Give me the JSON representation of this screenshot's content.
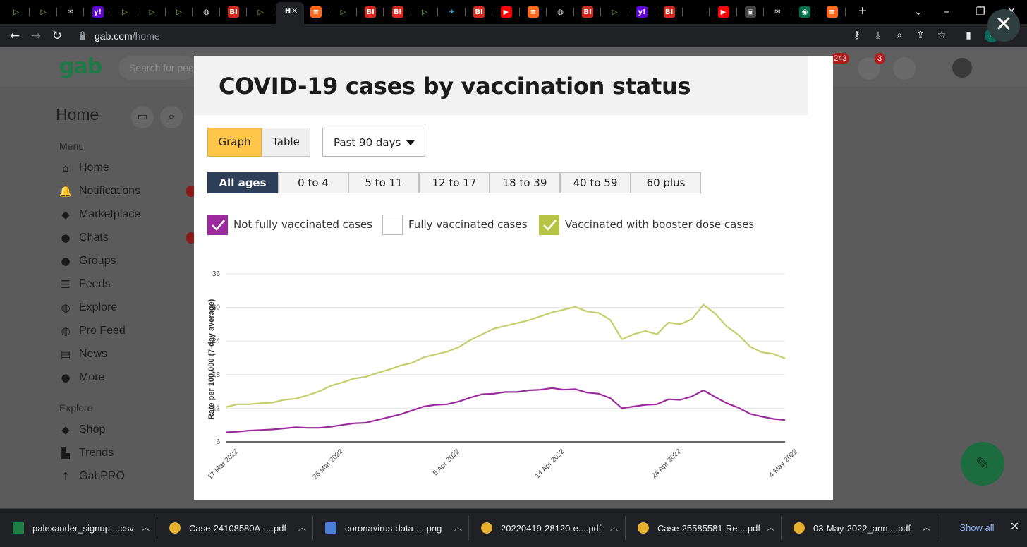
{
  "browser": {
    "tabs": [
      {
        "icon": "rumble-icon",
        "glyph": "▷",
        "bg": "#000000",
        "fg": "#85c742"
      },
      {
        "icon": "rumble-icon",
        "glyph": "▷",
        "bg": "#000000",
        "fg": "#85c742"
      },
      {
        "icon": "mail-icon",
        "glyph": "✉",
        "bg": "#000000",
        "fg": "#ffffff"
      },
      {
        "icon": "yahoo-icon",
        "glyph": "y!",
        "bg": "#5f01d1",
        "fg": "#ffffff"
      },
      {
        "icon": "rumble-icon",
        "glyph": "▷",
        "bg": "#000000",
        "fg": "#85c742"
      },
      {
        "icon": "rumble-icon",
        "glyph": "▷",
        "bg": "#000000",
        "fg": "#85c742"
      },
      {
        "icon": "rumble-icon",
        "glyph": "▷",
        "bg": "#000000",
        "fg": "#85c742"
      },
      {
        "icon": "globe-icon",
        "glyph": "◍",
        "bg": "#000000",
        "fg": "#ffffff"
      },
      {
        "icon": "bi-icon",
        "glyph": "BI",
        "bg": "#d52b1e",
        "fg": "#ffffff"
      },
      {
        "icon": "rumble-icon",
        "glyph": "▷",
        "bg": "#000000",
        "fg": "#85c742"
      },
      {
        "icon": "gab-active-icon",
        "glyph": "H",
        "bg": "#202124",
        "fg": "#ffffff",
        "active": true
      },
      {
        "icon": "substack-icon",
        "glyph": "≡",
        "bg": "#ff6719",
        "fg": "#ffffff"
      },
      {
        "icon": "rumble-icon",
        "glyph": "▷",
        "bg": "#000000",
        "fg": "#85c742"
      },
      {
        "icon": "bi-icon",
        "glyph": "BI",
        "bg": "#d52b1e",
        "fg": "#ffffff"
      },
      {
        "icon": "bi-icon",
        "glyph": "BI",
        "bg": "#d52b1e",
        "fg": "#ffffff"
      },
      {
        "icon": "rumble-icon",
        "glyph": "▷",
        "bg": "#000000",
        "fg": "#85c742"
      },
      {
        "icon": "bird-icon",
        "glyph": "✈",
        "bg": "#000000",
        "fg": "#3ab0e2"
      },
      {
        "icon": "bi-icon",
        "glyph": "BI",
        "bg": "#d52b1e",
        "fg": "#ffffff"
      },
      {
        "icon": "youtube-icon",
        "glyph": "▶",
        "bg": "#ff0000",
        "fg": "#ffffff"
      },
      {
        "icon": "substack-icon",
        "glyph": "≡",
        "bg": "#ff6719",
        "fg": "#ffffff"
      },
      {
        "icon": "globe-icon",
        "glyph": "◍",
        "bg": "#000000",
        "fg": "#ffffff"
      },
      {
        "icon": "bi-icon",
        "glyph": "BI",
        "bg": "#d52b1e",
        "fg": "#ffffff"
      },
      {
        "icon": "rumble-icon",
        "glyph": "▷",
        "bg": "#000000",
        "fg": "#85c742"
      },
      {
        "icon": "yahoo-icon",
        "glyph": "y!",
        "bg": "#5f01d1",
        "fg": "#ffffff"
      },
      {
        "icon": "bi-icon",
        "glyph": "BI",
        "bg": "#d52b1e",
        "fg": "#ffffff"
      },
      {
        "icon": "blank-icon",
        "glyph": "",
        "bg": "#000000",
        "fg": "#ffffff"
      },
      {
        "icon": "youtube-icon",
        "glyph": "▶",
        "bg": "#ff0000",
        "fg": "#ffffff"
      },
      {
        "icon": "photo-icon",
        "glyph": "▣",
        "bg": "#444444",
        "fg": "#dddddd"
      },
      {
        "icon": "mail-icon",
        "glyph": "✉",
        "bg": "#000000",
        "fg": "#ffffff"
      },
      {
        "icon": "starbucks-icon",
        "glyph": "◉",
        "bg": "#00704a",
        "fg": "#ffffff"
      },
      {
        "icon": "substack-icon",
        "glyph": "≡",
        "bg": "#ff6719",
        "fg": "#ffffff"
      }
    ],
    "url_host": "gab.com",
    "url_path": "/home",
    "profile_initial": "P"
  },
  "gab": {
    "logo": "gab",
    "search_placeholder": "Search for people",
    "notif_badge": "243",
    "chat_badge": "3",
    "home_title": "Home",
    "menu_label": "Menu",
    "menu_items": [
      {
        "label": "Home",
        "icon": "home-icon",
        "glyph": "⌂"
      },
      {
        "label": "Notifications",
        "icon": "bell-icon",
        "glyph": "🔔"
      },
      {
        "label": "Marketplace",
        "icon": "tag-icon",
        "glyph": "◆"
      },
      {
        "label": "Chats",
        "icon": "chat-icon",
        "glyph": "●"
      },
      {
        "label": "Groups",
        "icon": "groups-icon",
        "glyph": "●"
      },
      {
        "label": "Feeds",
        "icon": "feeds-icon",
        "glyph": "☰"
      },
      {
        "label": "Explore",
        "icon": "globe-icon",
        "glyph": "◍"
      },
      {
        "label": "Pro Feed",
        "icon": "globe-icon",
        "glyph": "◍"
      },
      {
        "label": "News",
        "icon": "news-icon",
        "glyph": "▤"
      },
      {
        "label": "More",
        "icon": "more-icon",
        "glyph": "●"
      }
    ],
    "explore_label": "Explore",
    "explore_items": [
      {
        "label": "Shop",
        "icon": "tag-icon",
        "glyph": "◆"
      },
      {
        "label": "Trends",
        "icon": "trends-icon",
        "glyph": "▙"
      },
      {
        "label": "GabPRO",
        "icon": "arrow-up-icon",
        "glyph": "↑"
      }
    ]
  },
  "modal": {
    "title": "COVID-19 cases by vaccination status",
    "view_graph": "Graph",
    "view_table": "Table",
    "period": "Past 90 days",
    "age_groups": [
      "All ages",
      "0 to 4",
      "5 to 11",
      "12 to 17",
      "18 to 39",
      "40 to 59",
      "60 plus"
    ],
    "selected_age": "All ages",
    "legend": [
      {
        "label": "Not fully vaccinated cases",
        "checked": true,
        "color": "#9c2a9e"
      },
      {
        "label": "Fully vaccinated cases",
        "checked": false,
        "color": "#ffffff"
      },
      {
        "label": "Vaccinated with booster dose cases",
        "checked": true,
        "color": "#b5c444"
      }
    ]
  },
  "chart_data": {
    "type": "line",
    "title": "COVID-19 cases by vaccination status",
    "xlabel": "",
    "ylabel": "Rate per 100,000 (7-day average)",
    "ylim": [
      6,
      36
    ],
    "yticks": [
      6,
      12,
      18,
      24,
      30,
      36
    ],
    "grid": true,
    "x_start": "2022-03-17",
    "x_end": "2022-05-04",
    "xtick_labels": [
      "17 Mar 2022",
      "26 Mar 2022",
      "5 Apr 2022",
      "14 Apr 2022",
      "24 Apr 2022",
      "4 May 2022"
    ],
    "xtick_positions": [
      "2022-03-17",
      "2022-03-26",
      "2022-04-05",
      "2022-04-14",
      "2022-04-24",
      "2022-05-04"
    ],
    "series": [
      {
        "name": "Vaccinated with booster dose cases",
        "color": "#c3cf6a",
        "points": [
          [
            "2022-03-17",
            12.2
          ],
          [
            "2022-03-18",
            12.7
          ],
          [
            "2022-03-19",
            12.7
          ],
          [
            "2022-03-20",
            12.9
          ],
          [
            "2022-03-21",
            13.0
          ],
          [
            "2022-03-22",
            13.5
          ],
          [
            "2022-03-23",
            13.7
          ],
          [
            "2022-03-24",
            14.3
          ],
          [
            "2022-03-25",
            15.0
          ],
          [
            "2022-03-26",
            16.0
          ],
          [
            "2022-03-27",
            16.6
          ],
          [
            "2022-03-28",
            17.3
          ],
          [
            "2022-03-29",
            17.6
          ],
          [
            "2022-03-30",
            18.3
          ],
          [
            "2022-03-31",
            18.9
          ],
          [
            "2022-04-01",
            19.6
          ],
          [
            "2022-04-02",
            20.1
          ],
          [
            "2022-04-03",
            21.1
          ],
          [
            "2022-04-04",
            21.6
          ],
          [
            "2022-04-05",
            22.1
          ],
          [
            "2022-04-06",
            22.9
          ],
          [
            "2022-04-07",
            24.2
          ],
          [
            "2022-04-08",
            25.2
          ],
          [
            "2022-04-09",
            26.2
          ],
          [
            "2022-04-10",
            26.7
          ],
          [
            "2022-04-11",
            27.2
          ],
          [
            "2022-04-12",
            27.7
          ],
          [
            "2022-04-13",
            28.4
          ],
          [
            "2022-04-14",
            29.1
          ],
          [
            "2022-04-15",
            29.6
          ],
          [
            "2022-04-16",
            30.1
          ],
          [
            "2022-04-17",
            29.3
          ],
          [
            "2022-04-18",
            29.0
          ],
          [
            "2022-04-19",
            27.8
          ],
          [
            "2022-04-20",
            24.3
          ],
          [
            "2022-04-21",
            25.2
          ],
          [
            "2022-04-22",
            25.8
          ],
          [
            "2022-04-23",
            25.2
          ],
          [
            "2022-04-24",
            27.3
          ],
          [
            "2022-04-25",
            27.0
          ],
          [
            "2022-04-26",
            27.9
          ],
          [
            "2022-04-27",
            30.5
          ],
          [
            "2022-04-28",
            28.9
          ],
          [
            "2022-04-29",
            26.6
          ],
          [
            "2022-04-30",
            25.1
          ],
          [
            "2022-05-01",
            23.0
          ],
          [
            "2022-05-02",
            22.0
          ],
          [
            "2022-05-03",
            21.7
          ],
          [
            "2022-05-04",
            20.9
          ]
        ]
      },
      {
        "name": "Not fully vaccinated cases",
        "color": "#9c2a9e",
        "points": [
          [
            "2022-03-17",
            7.7
          ],
          [
            "2022-03-18",
            7.8
          ],
          [
            "2022-03-19",
            8.0
          ],
          [
            "2022-03-20",
            8.1
          ],
          [
            "2022-03-21",
            8.2
          ],
          [
            "2022-03-22",
            8.4
          ],
          [
            "2022-03-23",
            8.6
          ],
          [
            "2022-03-24",
            8.5
          ],
          [
            "2022-03-25",
            8.5
          ],
          [
            "2022-03-26",
            8.7
          ],
          [
            "2022-03-27",
            9.0
          ],
          [
            "2022-03-28",
            9.3
          ],
          [
            "2022-03-29",
            9.4
          ],
          [
            "2022-03-30",
            9.9
          ],
          [
            "2022-03-31",
            10.4
          ],
          [
            "2022-04-01",
            10.9
          ],
          [
            "2022-04-02",
            11.6
          ],
          [
            "2022-04-03",
            12.3
          ],
          [
            "2022-04-04",
            12.6
          ],
          [
            "2022-04-05",
            12.7
          ],
          [
            "2022-04-06",
            13.2
          ],
          [
            "2022-04-07",
            13.9
          ],
          [
            "2022-04-08",
            14.5
          ],
          [
            "2022-04-09",
            14.6
          ],
          [
            "2022-04-10",
            14.9
          ],
          [
            "2022-04-11",
            14.9
          ],
          [
            "2022-04-12",
            15.2
          ],
          [
            "2022-04-13",
            15.3
          ],
          [
            "2022-04-14",
            15.6
          ],
          [
            "2022-04-15",
            15.3
          ],
          [
            "2022-04-16",
            15.4
          ],
          [
            "2022-04-17",
            14.8
          ],
          [
            "2022-04-18",
            14.6
          ],
          [
            "2022-04-19",
            13.8
          ],
          [
            "2022-04-20",
            12.0
          ],
          [
            "2022-04-21",
            12.3
          ],
          [
            "2022-04-22",
            12.6
          ],
          [
            "2022-04-23",
            12.7
          ],
          [
            "2022-04-24",
            13.6
          ],
          [
            "2022-04-25",
            13.5
          ],
          [
            "2022-04-26",
            14.1
          ],
          [
            "2022-04-27",
            15.2
          ],
          [
            "2022-04-28",
            14.0
          ],
          [
            "2022-04-29",
            12.9
          ],
          [
            "2022-04-30",
            12.1
          ],
          [
            "2022-05-01",
            11.0
          ],
          [
            "2022-05-02",
            10.5
          ],
          [
            "2022-05-03",
            10.1
          ],
          [
            "2022-05-04",
            9.9
          ]
        ]
      }
    ]
  },
  "downloads": [
    {
      "name": "palexander_signup....csv",
      "icon": "sheet-icon",
      "color": "#1e7e45"
    },
    {
      "name": "Case-24108580A-....pdf",
      "icon": "chrome-icon",
      "color": "#e8b02f"
    },
    {
      "name": "coronavirus-data-....png",
      "icon": "image-file-icon",
      "color": "#4a7fd8"
    },
    {
      "name": "20220419-28120-e....pdf",
      "icon": "chrome-icon",
      "color": "#e8b02f"
    },
    {
      "name": "Case-25585581-Re....pdf",
      "icon": "chrome-icon",
      "color": "#e8b02f"
    },
    {
      "name": "03-May-2022_ann....pdf",
      "icon": "chrome-icon",
      "color": "#e8b02f"
    }
  ],
  "downloads_show_all": "Show all"
}
